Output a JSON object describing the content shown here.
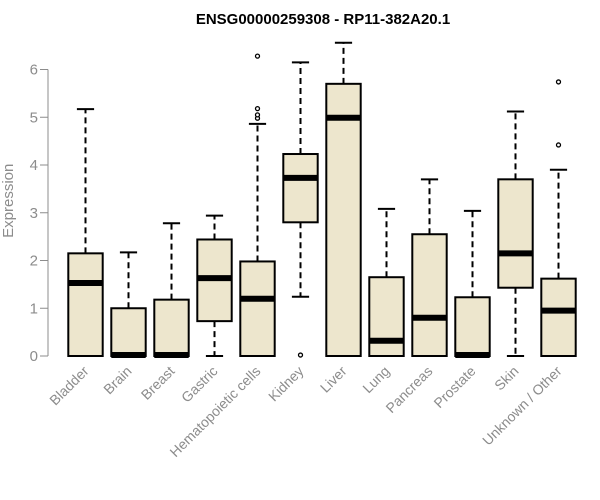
{
  "chart_data": {
    "type": "boxplot",
    "title": "ENSG00000259308 - RP11-382A20.1",
    "ylabel": "Expression",
    "xlabel": "",
    "ylim": [
      0,
      6.6
    ],
    "yticks": [
      0,
      1,
      2,
      3,
      4,
      5,
      6
    ],
    "grid": false,
    "colors": {
      "box_fill": "#ede6cd",
      "stroke": "#000000",
      "axis": "#8c8c8c",
      "text": "#8c8c8c"
    },
    "categories": [
      "Bladder",
      "Brain",
      "Breast",
      "Gastric",
      "Hematopoietic cells",
      "Kidney",
      "Liver",
      "Lung",
      "Pancreas",
      "Prostate",
      "Skin",
      "Unknown / Other"
    ],
    "boxes": [
      {
        "category": "Bladder",
        "whisker_low": 0,
        "q1": 0,
        "median": 1.53,
        "q3": 2.15,
        "whisker_high": 5.17,
        "outliers": []
      },
      {
        "category": "Brain",
        "whisker_low": 0,
        "q1": 0,
        "median": 0.02,
        "q3": 1.0,
        "whisker_high": 2.17,
        "outliers": []
      },
      {
        "category": "Breast",
        "whisker_low": 0,
        "q1": 0,
        "median": 0.02,
        "q3": 1.18,
        "whisker_high": 2.78,
        "outliers": []
      },
      {
        "category": "Gastric",
        "whisker_low": 0,
        "q1": 0.73,
        "median": 1.63,
        "q3": 2.44,
        "whisker_high": 2.94,
        "outliers": []
      },
      {
        "category": "Hematopoietic cells",
        "whisker_low": 0,
        "q1": 0,
        "median": 1.2,
        "q3": 1.98,
        "whisker_high": 4.86,
        "outliers": [
          4.98,
          5.05,
          5.18,
          6.28
        ]
      },
      {
        "category": "Kidney",
        "whisker_low": 1.24,
        "q1": 2.8,
        "median": 3.73,
        "q3": 4.23,
        "whisker_high": 6.15,
        "outliers": [
          0.02
        ]
      },
      {
        "category": "Liver",
        "whisker_low": 0,
        "q1": 0,
        "median": 4.99,
        "q3": 5.7,
        "whisker_high": 6.56,
        "outliers": []
      },
      {
        "category": "Lung",
        "whisker_low": 0,
        "q1": 0,
        "median": 0.32,
        "q3": 1.65,
        "whisker_high": 3.08,
        "outliers": []
      },
      {
        "category": "Pancreas",
        "whisker_low": 0,
        "q1": 0,
        "median": 0.8,
        "q3": 2.55,
        "whisker_high": 3.7,
        "outliers": []
      },
      {
        "category": "Prostate",
        "whisker_low": 0,
        "q1": 0,
        "median": 0.02,
        "q3": 1.23,
        "whisker_high": 3.04,
        "outliers": []
      },
      {
        "category": "Skin",
        "whisker_low": 0,
        "q1": 1.43,
        "median": 2.15,
        "q3": 3.7,
        "whisker_high": 5.12,
        "outliers": []
      },
      {
        "category": "Unknown / Other",
        "whisker_low": 0,
        "q1": 0,
        "median": 0.95,
        "q3": 1.62,
        "whisker_high": 3.9,
        "outliers": [
          4.42,
          5.74
        ]
      }
    ]
  }
}
